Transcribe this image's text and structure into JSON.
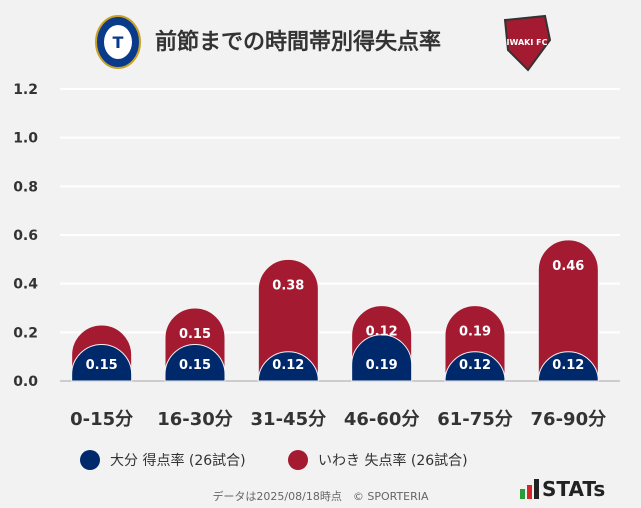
{
  "title": "前節までの時間帯別得失点率",
  "footer": "データは2025/08/18時点　© SPORTERIA",
  "brand": "STATs",
  "chart_data": {
    "type": "bar",
    "stacked": true,
    "categories": [
      "0-15分",
      "16-30分",
      "31-45分",
      "46-60分",
      "61-75分",
      "76-90分"
    ],
    "series": [
      {
        "name": "大分 得点率 (26試合)",
        "color": "#00296b",
        "values": [
          0.15,
          0.15,
          0.12,
          0.19,
          0.12,
          0.12
        ]
      },
      {
        "name": "いわき 失点率 (26試合)",
        "color": "#a31a31",
        "values": [
          0.08,
          0.15,
          0.38,
          0.12,
          0.19,
          0.46
        ]
      }
    ],
    "yticks": [
      "0.0",
      "0.2",
      "0.4",
      "0.6",
      "0.8",
      "1.0",
      "1.2"
    ],
    "ylim": [
      0,
      1.2
    ],
    "grid": true,
    "legend": "bottom"
  }
}
